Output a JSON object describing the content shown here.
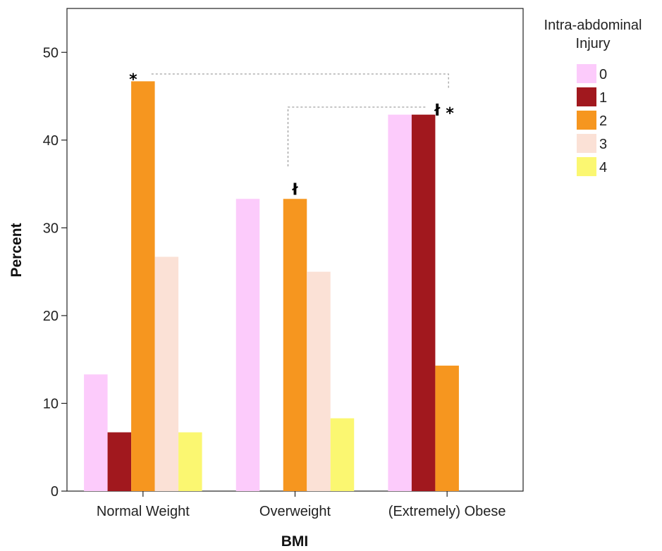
{
  "chart_data": {
    "type": "bar",
    "xlabel": "BMI",
    "ylabel": "Percent",
    "ylim": [
      0,
      55
    ],
    "yticks": [
      0,
      10,
      20,
      30,
      40,
      50
    ],
    "grid": false,
    "legend_position": "right",
    "legend_title": [
      "Intra-abdominal",
      "Injury"
    ],
    "categories": [
      "Normal Weight",
      "Overweight",
      "(Extremely) Obese"
    ],
    "series": [
      {
        "name": "0",
        "color": "#fccbfb",
        "values": [
          13.3,
          33.3,
          42.9
        ]
      },
      {
        "name": "1",
        "color": "#a1181e",
        "values": [
          6.7,
          0,
          42.9
        ]
      },
      {
        "name": "2",
        "color": "#f6961f",
        "values": [
          46.7,
          33.3,
          14.3
        ]
      },
      {
        "name": "3",
        "color": "#fbe1d6",
        "values": [
          26.7,
          25.0,
          0
        ]
      },
      {
        "name": "4",
        "color": "#fbf771",
        "values": [
          6.7,
          8.3,
          0
        ]
      }
    ],
    "annotations": {
      "asterisk": "*",
      "dagger": "ł",
      "significance_brackets": [
        {
          "from": {
            "category": "Normal Weight",
            "series": "2"
          },
          "to": {
            "category": "(Extremely) Obese",
            "series": "2"
          },
          "marker": "*"
        },
        {
          "from": {
            "category": "Overweight",
            "series": "2"
          },
          "to": {
            "category": "(Extremely) Obese",
            "series": "2"
          },
          "marker": "ł"
        }
      ]
    }
  }
}
